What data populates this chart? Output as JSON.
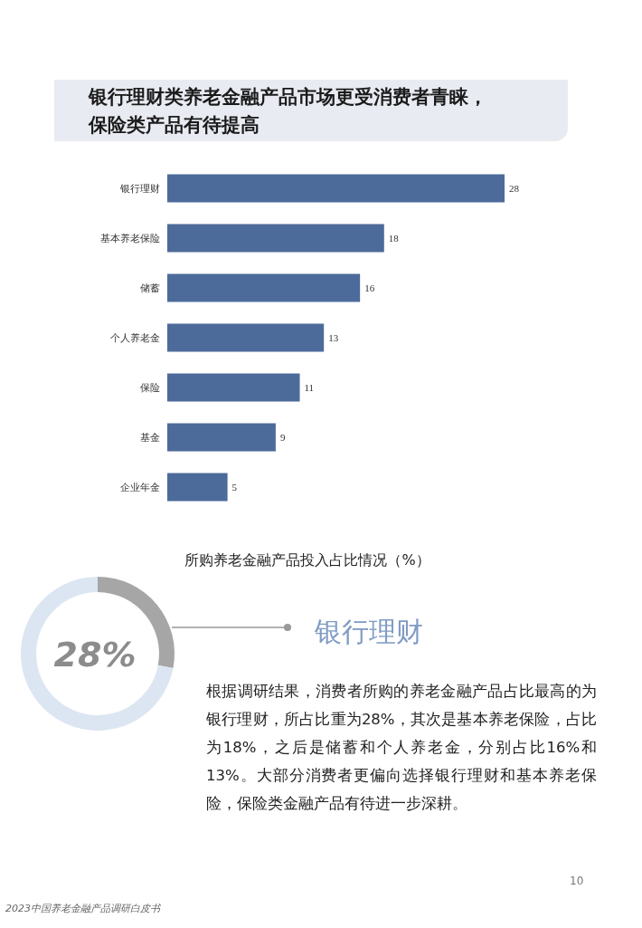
{
  "chart_data": [
    {
      "type": "bar",
      "orientation": "horizontal",
      "data_labels": true,
      "title": "银行理财类养老金融产品市场更受消费者青睐，保险类产品有待提高",
      "xlabel": "所购养老金融产品投入占比情况（%）",
      "categories": [
        "银行理财",
        "基本养老保险",
        "储蓄",
        "个人养老金",
        "保险",
        "基金",
        "企业年金"
      ],
      "values": [
        28,
        18,
        16,
        13,
        11,
        9,
        5
      ],
      "color": "#4d6b9a"
    },
    {
      "type": "donut",
      "title": "银行理财",
      "categories": [
        null,
        null
      ],
      "values": [
        28,
        72
      ],
      "colors": [
        "#a6a6a6",
        "#dce6f2"
      ],
      "annotations": [
        "28%",
        "根据调研结果，消费者所购的养老金融产品占比最高的为银行理财，所占比重为28%，其次是基本养老保险，占比为18%，之后是储蓄和个人养老金，分别占比16%和13%。大部分消费者更偏向选择银行理财和基本养老保险，保险类金融产品有待进一步深耕。",
        "10",
        "2023中国养老金融产品调研白皮书"
      ]
    }
  ]
}
